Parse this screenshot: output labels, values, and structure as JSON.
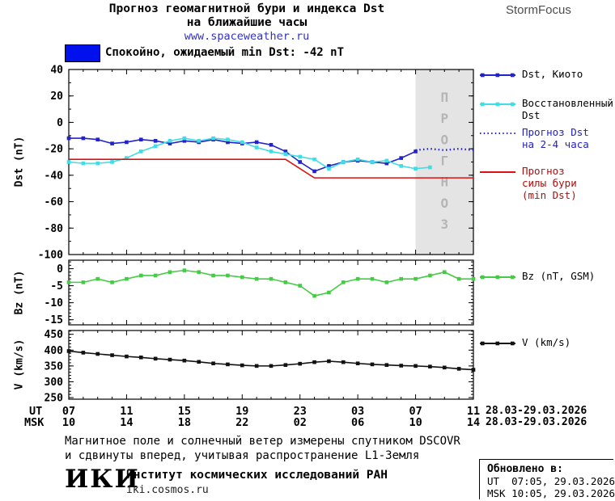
{
  "header": {
    "title_line1": "Прогноз геомагнитной бури и индекса Dst",
    "title_line2": "на ближайшие часы",
    "site": "www.spaceweather.ru",
    "brand": "StormFocus"
  },
  "status": {
    "label": "Спокойно, ожидаемый min Dst: -42 nT",
    "color": "#0011ee"
  },
  "forecast_band": {
    "label": "ПРОГНОЗ",
    "start_hour": 24,
    "end_hour": 28,
    "fill": "#e4e4e4",
    "text_color": "#b5b5b5"
  },
  "chart_data": [
    {
      "type": "line",
      "ylabel": "Dst (nT)",
      "ylim": [
        -100,
        40
      ],
      "yticks": [
        40,
        20,
        0,
        -20,
        -40,
        -60,
        -80,
        -100
      ],
      "yminor": 10,
      "xlim": [
        0,
        28
      ],
      "xticks_hours": [
        0,
        4,
        8,
        12,
        16,
        20,
        24,
        28
      ],
      "series": [
        {
          "name": "Dst, Киото",
          "color": "#2222cc",
          "style": "solid",
          "marker": "square",
          "x": [
            0,
            1,
            2,
            3,
            4,
            5,
            6,
            7,
            8,
            9,
            10,
            11,
            12,
            13,
            14,
            15,
            16,
            17,
            18,
            19,
            20,
            21,
            22,
            23,
            24
          ],
          "values": [
            -12,
            -12,
            -13,
            -16,
            -15,
            -13,
            -14,
            -16,
            -14,
            -15,
            -13,
            -15,
            -16,
            -15,
            -17,
            -22,
            -30,
            -37,
            -33,
            -30,
            -29,
            -30,
            -31,
            -27,
            -22
          ]
        },
        {
          "name": "Восстановленный Dst",
          "color": "#3fdde6",
          "style": "solid",
          "marker": "square",
          "x": [
            0,
            1,
            2,
            3,
            4,
            5,
            6,
            7,
            8,
            9,
            10,
            11,
            12,
            13,
            14,
            15,
            16,
            17,
            18,
            19,
            20,
            21,
            22,
            23,
            24,
            25
          ],
          "values": [
            -30,
            -31,
            -31,
            -30,
            -27,
            -22,
            -18,
            -14,
            -12,
            -14,
            -12,
            -13,
            -15,
            -19,
            -22,
            -24,
            -26,
            -28,
            -35,
            -30,
            -28,
            -30,
            -29,
            -33,
            -35,
            -34
          ]
        },
        {
          "name": "Прогноз Dst на 2-4 часа",
          "color": "#2222cc",
          "style": "dotted",
          "marker": null,
          "x": [
            24,
            25,
            26,
            27,
            28
          ],
          "values": [
            -21,
            -20,
            -21,
            -20,
            -21
          ]
        },
        {
          "name": "Прогноз силы бури (min Dst)",
          "color": "#dd1111",
          "style": "solid",
          "marker": null,
          "x": [
            0,
            15,
            17,
            28
          ],
          "values": [
            -28,
            -28,
            -42,
            -42
          ]
        }
      ]
    },
    {
      "type": "line",
      "ylabel": "Bz (nT)",
      "ylim": [
        -16.5,
        2.5
      ],
      "yticks": [
        0,
        -5,
        -10,
        -15
      ],
      "yminor": 1,
      "xlim": [
        0,
        28
      ],
      "series": [
        {
          "name": "Bz (nT, GSM)",
          "color": "#44cc44",
          "style": "solid",
          "marker": "square",
          "x": [
            0,
            1,
            2,
            3,
            4,
            5,
            6,
            7,
            8,
            9,
            10,
            11,
            12,
            13,
            14,
            15,
            16,
            17,
            18,
            19,
            20,
            21,
            22,
            23,
            24,
            25,
            26,
            27,
            28
          ],
          "values": [
            -4,
            -4,
            -3,
            -4,
            -3,
            -2,
            -2,
            -1,
            -0.5,
            -1,
            -2,
            -2,
            -2.5,
            -3,
            -3,
            -4,
            -5,
            -8,
            -7,
            -4,
            -3,
            -3,
            -4,
            -3,
            -3,
            -2,
            -1,
            -3,
            -3
          ]
        }
      ]
    },
    {
      "type": "line",
      "ylabel": "V (km/s)",
      "ylim": [
        245,
        462
      ],
      "yticks": [
        450,
        400,
        350,
        300,
        250
      ],
      "yminor": 10,
      "xlim": [
        0,
        28
      ],
      "series": [
        {
          "name": "V (km/s)",
          "color": "#111111",
          "style": "solid",
          "marker": "square",
          "x": [
            0,
            1,
            2,
            3,
            4,
            5,
            6,
            7,
            8,
            9,
            10,
            11,
            12,
            13,
            14,
            15,
            16,
            17,
            18,
            19,
            20,
            21,
            22,
            23,
            24,
            25,
            26,
            27,
            28
          ],
          "values": [
            397,
            392,
            388,
            384,
            380,
            377,
            373,
            370,
            367,
            363,
            358,
            355,
            352,
            350,
            350,
            353,
            357,
            362,
            365,
            362,
            358,
            355,
            353,
            351,
            350,
            348,
            345,
            341,
            338
          ]
        }
      ]
    }
  ],
  "legend": {
    "items": [
      {
        "label": "Dst, Киото",
        "color": "#2222cc",
        "style": "solid",
        "marker": true,
        "text_color": "#000000"
      },
      {
        "label": "Восстановленный\nDst",
        "color": "#3fdde6",
        "style": "solid",
        "marker": true,
        "text_color": "#000000"
      },
      {
        "label": "Прогноз Dst\nна 2-4 часа",
        "color": "#2222cc",
        "style": "dotted",
        "marker": false,
        "text_color": "#2222bb"
      },
      {
        "label": "Прогноз\nсилы бури\n(min Dst)",
        "color": "#dd1111",
        "style": "solid",
        "marker": false,
        "text_color": "#aa1111"
      },
      {
        "label": "Bz (nT, GSM)",
        "color": "#44cc44",
        "style": "solid",
        "marker": true,
        "text_color": "#000000"
      },
      {
        "label": "V (km/s)",
        "color": "#111111",
        "style": "solid",
        "marker": true,
        "text_color": "#000000"
      }
    ]
  },
  "xaxis": {
    "ut_label": "UT",
    "msk_label": "MSK",
    "ut_ticks": [
      "07",
      "11",
      "15",
      "19",
      "23",
      "03",
      "07",
      "11"
    ],
    "msk_ticks": [
      "10",
      "14",
      "18",
      "22",
      "02",
      "06",
      "10",
      "14"
    ],
    "ut_date": "28.03-29.03.2026",
    "msk_date": "28.03-29.03.2026"
  },
  "footer": {
    "note_line1": "Магнитное поле и солнечный ветер измерены спутником DSCOVR",
    "note_line2": "и сдвинуты вперед, учитывая распространение L1-Земля",
    "logo": "ИКИ",
    "institute": "Институт космических исследований РАН",
    "institute_site": "iki.cosmos.ru",
    "updated_label": "Обновлено в:",
    "updated_ut": "UT  07:05, 29.03.2026",
    "updated_msk": "MSK 10:05, 29.03.2026"
  }
}
